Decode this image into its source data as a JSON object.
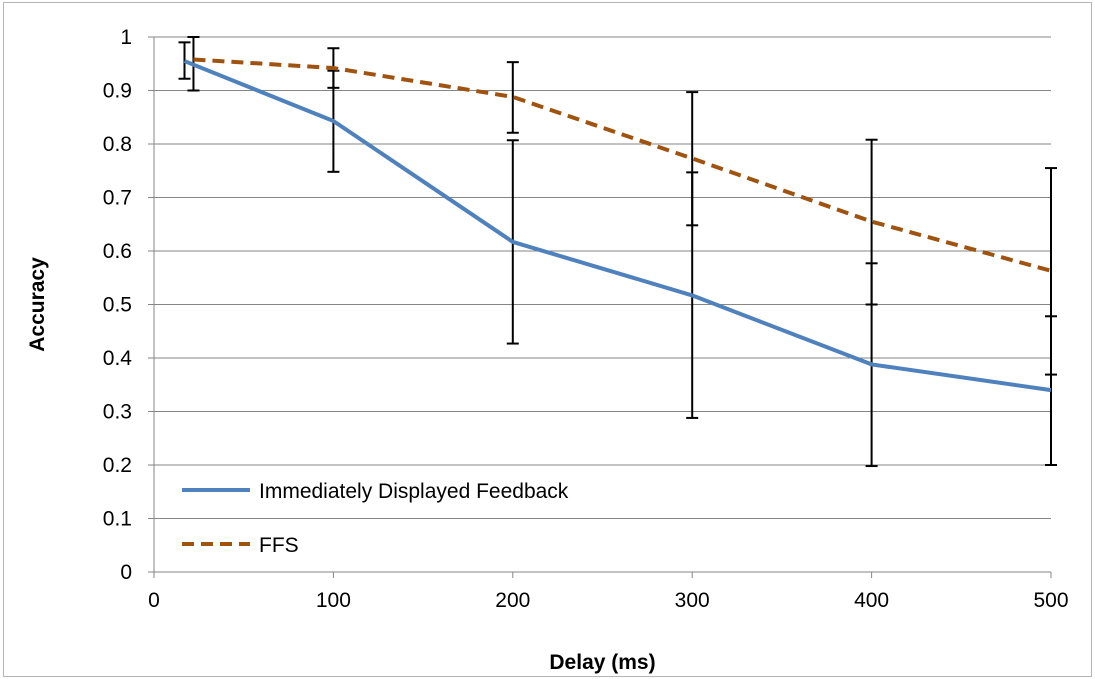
{
  "chart_data": {
    "type": "line",
    "title": "",
    "xlabel": "Delay (ms)",
    "ylabel": "Accuracy",
    "xlim": [
      0,
      500
    ],
    "ylim": [
      0,
      1
    ],
    "x_ticks": [
      0,
      100,
      200,
      300,
      400,
      500
    ],
    "y_ticks": [
      0,
      0.1,
      0.2,
      0.3,
      0.4,
      0.5,
      0.6,
      0.7,
      0.8,
      0.9,
      1
    ],
    "grid": "horizontal",
    "legend_position": "bottom-left",
    "series": [
      {
        "name": "Immediately Displayed Feedback",
        "color": "#4f81bd",
        "line_style": "solid",
        "x": [
          17,
          100,
          200,
          300,
          400,
          500
        ],
        "y": [
          0.955,
          0.843,
          0.617,
          0.517,
          0.388,
          0.34
        ],
        "error_low": [
          0.922,
          0.748,
          0.427,
          0.288,
          0.198,
          0.2
        ],
        "error_high": [
          0.99,
          0.937,
          0.807,
          0.747,
          0.577,
          0.478
        ]
      },
      {
        "name": "FFS",
        "color": "#a0520f",
        "line_style": "dashed",
        "x": [
          22,
          100,
          200,
          300,
          400,
          500
        ],
        "y": [
          0.958,
          0.942,
          0.888,
          0.773,
          0.655,
          0.563
        ],
        "error_low": [
          0.9,
          0.905,
          0.821,
          0.648,
          0.5,
          0.369
        ],
        "error_high": [
          1.0,
          0.979,
          0.953,
          0.897,
          0.808,
          0.755
        ]
      }
    ]
  }
}
